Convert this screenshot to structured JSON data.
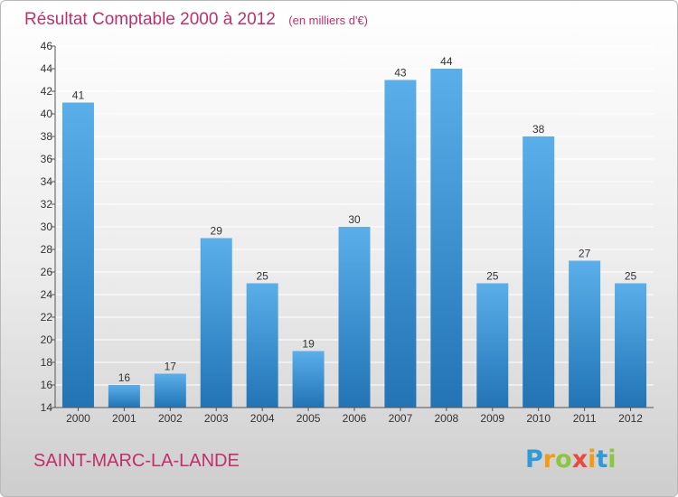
{
  "commune": "SAINT-MARC-LA-LANDE",
  "brand": {
    "letters": [
      "P",
      "r",
      "o",
      "x",
      "i",
      "t",
      "i"
    ],
    "colors": [
      "#2e9bd6",
      "#f39c12",
      "#8cc63f",
      "#e84b3c",
      "#f39c12",
      "#2e9bd6",
      "#8cc63f"
    ]
  },
  "colors": {
    "title": "#c0306a",
    "bar_top": "#5aafea",
    "bar_bottom": "#2274b5"
  },
  "chart_data": {
    "type": "bar",
    "title": "Résultat Comptable 2000 à 2012",
    "subtitle": "(en milliers d'€)",
    "xlabel": "",
    "ylabel": "",
    "categories": [
      "2000",
      "2001",
      "2002",
      "2003",
      "2004",
      "2005",
      "2006",
      "2007",
      "2008",
      "2009",
      "2010",
      "2011",
      "2012"
    ],
    "values": [
      41,
      16,
      17,
      29,
      25,
      19,
      30,
      43,
      44,
      25,
      38,
      27,
      25
    ],
    "ylim": [
      14,
      46
    ],
    "yticks": [
      14,
      16,
      18,
      20,
      22,
      24,
      26,
      28,
      30,
      32,
      34,
      36,
      38,
      40,
      42,
      44,
      46
    ],
    "grid": true
  }
}
